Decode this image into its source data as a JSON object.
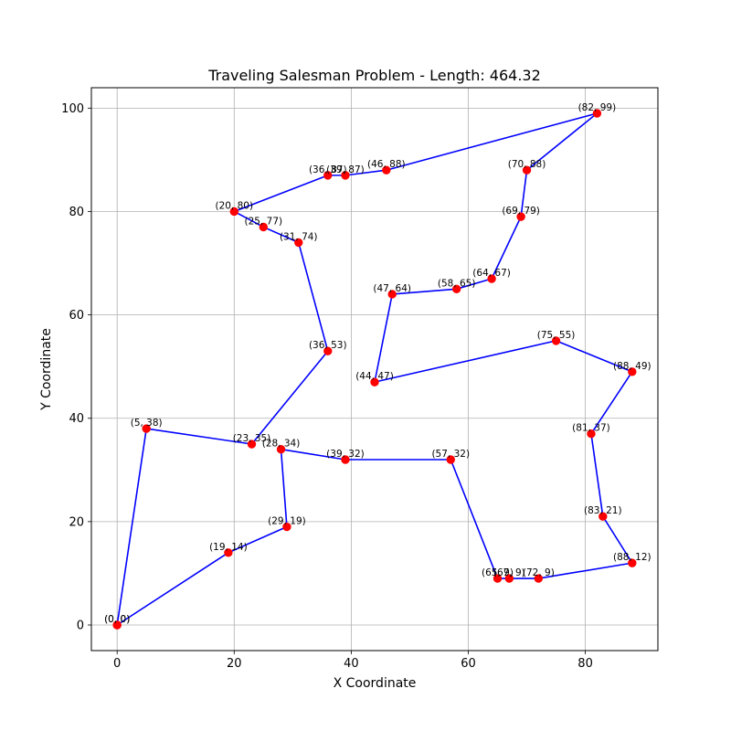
{
  "chart_data": {
    "type": "line",
    "title": "Traveling Salesman Problem - Length: 464.32",
    "xlabel": "X Coordinate",
    "ylabel": "Y Coordinate",
    "xlim": [
      -4.4,
      92.4
    ],
    "ylim": [
      -4.95,
      103.95
    ],
    "x_ticks": [
      0,
      20,
      40,
      60,
      80
    ],
    "y_ticks": [
      0,
      20,
      40,
      60,
      80,
      100
    ],
    "grid": true,
    "line_color": "#0000ff",
    "marker_color": "#ff0000",
    "route": [
      {
        "x": 0,
        "y": 0,
        "label": "(0, 0)"
      },
      {
        "x": 19,
        "y": 14,
        "label": "(19, 14)"
      },
      {
        "x": 29,
        "y": 19,
        "label": "(29, 19)"
      },
      {
        "x": 28,
        "y": 34,
        "label": "(28, 34)"
      },
      {
        "x": 39,
        "y": 32,
        "label": "(39, 32)"
      },
      {
        "x": 57,
        "y": 32,
        "label": "(57, 32)"
      },
      {
        "x": 65,
        "y": 9,
        "label": "(65, 9)"
      },
      {
        "x": 67,
        "y": 9,
        "label": "(67, 9)"
      },
      {
        "x": 72,
        "y": 9,
        "label": "(72, 9)"
      },
      {
        "x": 88,
        "y": 12,
        "label": "(88, 12)"
      },
      {
        "x": 83,
        "y": 21,
        "label": "(83, 21)"
      },
      {
        "x": 81,
        "y": 37,
        "label": "(81, 37)"
      },
      {
        "x": 88,
        "y": 49,
        "label": "(88, 49)"
      },
      {
        "x": 75,
        "y": 55,
        "label": "(75, 55)"
      },
      {
        "x": 44,
        "y": 47,
        "label": "(44, 47)"
      },
      {
        "x": 47,
        "y": 64,
        "label": "(47, 64)"
      },
      {
        "x": 58,
        "y": 65,
        "label": "(58, 65)"
      },
      {
        "x": 64,
        "y": 67,
        "label": "(64, 67)"
      },
      {
        "x": 69,
        "y": 79,
        "label": "(69, 79)"
      },
      {
        "x": 70,
        "y": 88,
        "label": "(70, 88)"
      },
      {
        "x": 82,
        "y": 99,
        "label": "(82, 99)"
      },
      {
        "x": 46,
        "y": 88,
        "label": "(46, 88)"
      },
      {
        "x": 39,
        "y": 87,
        "label": "(39, 87)"
      },
      {
        "x": 36,
        "y": 87,
        "label": "(36, 87)"
      },
      {
        "x": 20,
        "y": 80,
        "label": "(20, 80)"
      },
      {
        "x": 25,
        "y": 77,
        "label": "(25, 77)"
      },
      {
        "x": 31,
        "y": 74,
        "label": "(31, 74)"
      },
      {
        "x": 36,
        "y": 53,
        "label": "(36, 53)"
      },
      {
        "x": 23,
        "y": 35,
        "label": "(23, 35)"
      },
      {
        "x": 5,
        "y": 38,
        "label": "(5, 38)"
      },
      {
        "x": 0,
        "y": 0,
        "label": "(0, 0)"
      }
    ]
  }
}
